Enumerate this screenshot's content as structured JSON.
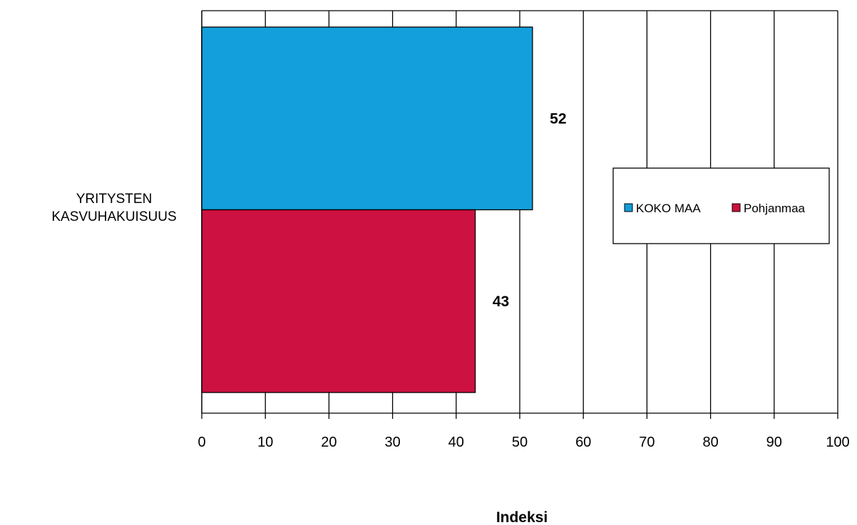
{
  "chart_data": {
    "type": "bar",
    "orientation": "horizontal",
    "categories": [
      "YRITYSTEN KASVUHAKUISUUS"
    ],
    "category_label_lines": [
      "YRITYSTEN",
      "KASVUHAKUISUUS"
    ],
    "series": [
      {
        "name": "KOKO MAA",
        "values": [
          52
        ],
        "color": "#129FDB"
      },
      {
        "name": "Pohjanmaa",
        "values": [
          43
        ],
        "color": "#CD1140"
      }
    ],
    "xlabel": "Indeksi",
    "xlim": [
      0,
      100
    ],
    "xticks": [
      0,
      10,
      20,
      30,
      40,
      50,
      60,
      70,
      80,
      90,
      100
    ],
    "grid": "vertical",
    "legend_position": "right",
    "data_labels": true
  }
}
